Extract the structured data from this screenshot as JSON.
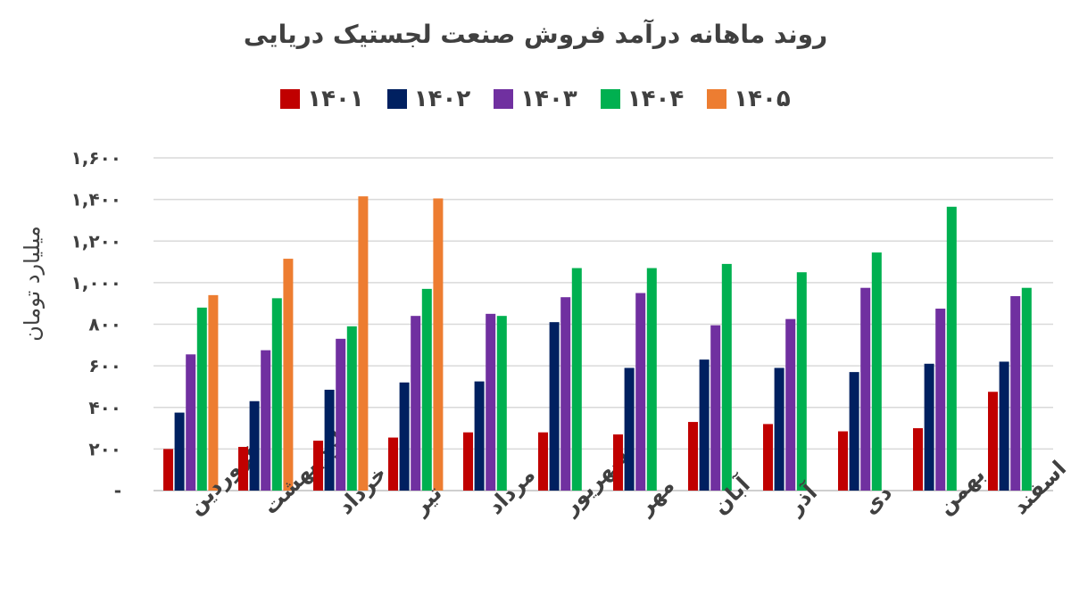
{
  "chart_data": {
    "type": "bar",
    "title": "روند ماهانه درآمد فروش صنعت لجستیک دریایی",
    "ylabel": "میلیارد تومان",
    "xlabel": "",
    "ylim": [
      0,
      1600
    ],
    "yticks": [
      "-",
      "۲۰۰",
      "۴۰۰",
      "۶۰۰",
      "۸۰۰",
      "۱,۰۰۰",
      "۱,۲۰۰",
      "۱,۴۰۰",
      "۱,۶۰۰"
    ],
    "grid": true,
    "legend_position": "top",
    "categories": [
      "فروردین",
      "اردیبهشت",
      "خرداد",
      "تیر",
      "مرداد",
      "شهریور",
      "مهر",
      "آبان",
      "آذر",
      "دی",
      "بهمن",
      "اسفند"
    ],
    "series": [
      {
        "name": "۱۴۰۱",
        "color": "#c00000",
        "values": [
          200,
          210,
          240,
          255,
          280,
          280,
          270,
          330,
          320,
          285,
          300,
          475
        ]
      },
      {
        "name": "۱۴۰۲",
        "color": "#002060",
        "values": [
          375,
          430,
          485,
          520,
          525,
          810,
          590,
          630,
          590,
          570,
          610,
          620
        ]
      },
      {
        "name": "۱۴۰۳",
        "color": "#7030a0",
        "values": [
          655,
          675,
          730,
          840,
          850,
          930,
          950,
          795,
          825,
          975,
          875,
          935
        ]
      },
      {
        "name": "۱۴۰۴",
        "color": "#00b050",
        "values": [
          880,
          925,
          790,
          970,
          840,
          1070,
          1070,
          1090,
          1050,
          1145,
          1365,
          975
        ]
      },
      {
        "name": "۱۴۰۵",
        "color": "#ed7d31",
        "values": [
          940,
          1115,
          1415,
          1405,
          null,
          null,
          null,
          null,
          null,
          null,
          null,
          null
        ]
      }
    ]
  }
}
